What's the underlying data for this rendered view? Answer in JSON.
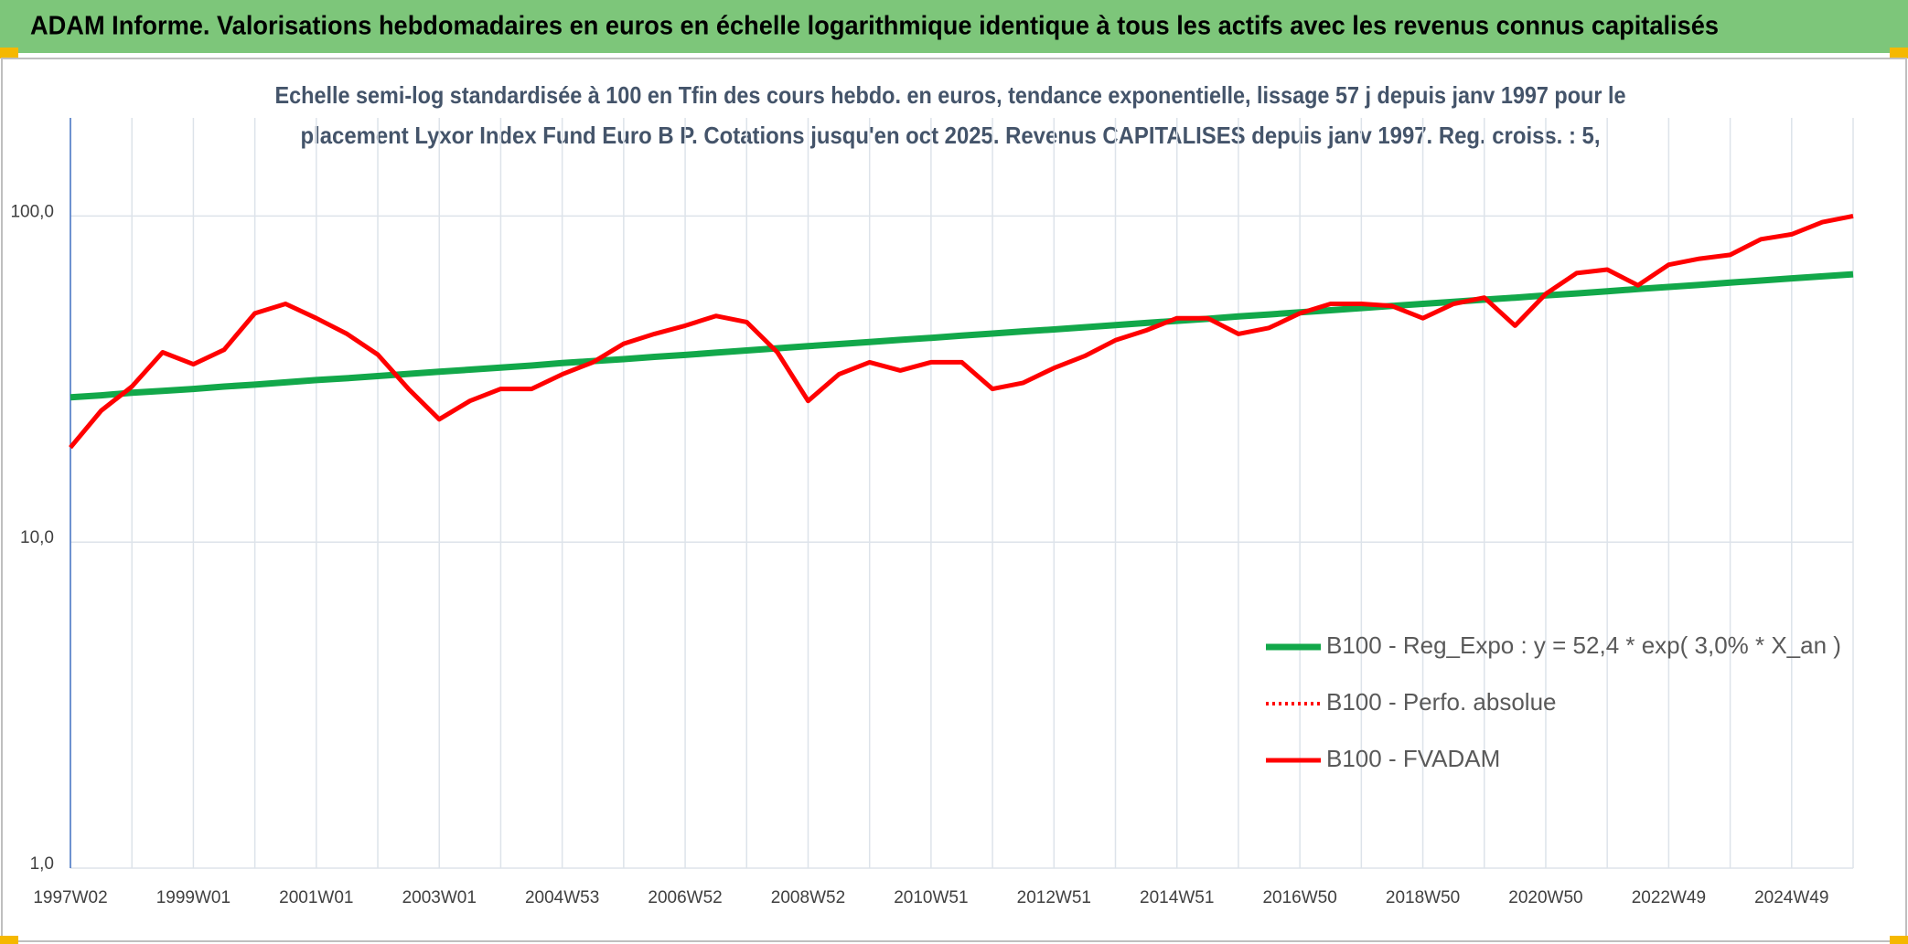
{
  "chart_data": {
    "type": "line",
    "title": "ADAM Informe. Valorisations hebdomadaires en euros en échelle logarithmique identique à tous les actifs avec les revenus connus capitalisés",
    "subtitle": [
      "Echelle semi-log standardisée à 100 en Tfin des cours hebdo. en euros, tendance exponentielle, lissage 57 j depuis janv 1997 pour le",
      "placement Lyxor Index Fund Euro B P. Cotations jusqu'en oct 2025. Revenus CAPITALISES depuis janv 1997. Reg. croiss. : 5,"
    ],
    "categories": [
      "1997W02",
      null,
      null,
      null,
      "1999W01",
      null,
      null,
      null,
      "2001W01",
      null,
      null,
      null,
      "2003W01",
      null,
      null,
      null,
      "2004W53",
      null,
      null,
      null,
      "2006W52",
      null,
      null,
      null,
      "2008W52",
      null,
      null,
      null,
      "2010W51",
      null,
      null,
      null,
      "2012W51",
      null,
      null,
      null,
      "2014W51",
      null,
      null,
      null,
      "2016W50",
      null,
      null,
      null,
      "2018W50",
      null,
      null,
      null,
      "2020W50",
      null,
      null,
      null,
      "2022W49",
      null,
      null,
      null,
      "2024W49",
      null,
      null
    ],
    "series": [
      {
        "name": "B100 - Reg_Expo : y = 52,4 * exp( 3,0% *  X_an )",
        "color": "#12a84a",
        "style": "solid",
        "values": [
          27.8,
          28.2,
          28.7,
          29.1,
          29.5,
          30.0,
          30.4,
          30.9,
          31.4,
          31.8,
          32.3,
          32.8,
          33.3,
          33.8,
          34.3,
          34.8,
          35.4,
          35.9,
          36.4,
          37.0,
          37.5,
          38.1,
          38.7,
          39.3,
          39.9,
          40.5,
          41.1,
          41.7,
          42.3,
          43.0,
          43.6,
          44.3,
          44.9,
          45.6,
          46.3,
          47.0,
          47.7,
          48.4,
          49.2,
          49.9,
          50.7,
          51.4,
          52.2,
          53.0,
          53.8,
          54.6,
          55.4,
          56.2,
          57.1,
          57.9,
          58.8,
          59.7,
          60.6,
          61.5,
          62.5,
          63.4,
          64.4,
          65.3,
          66.3
        ]
      },
      {
        "name": "B100 - Perfo. absolue",
        "color": "#ff0000",
        "style": "dotted",
        "values": [
          19.5,
          25.3,
          30.0,
          38.2,
          35.1,
          38.9,
          50.3,
          53.8,
          48.6,
          43.5,
          37.6,
          29.5,
          23.8,
          27.1,
          29.5,
          29.5,
          32.7,
          35.6,
          40.6,
          43.5,
          46.1,
          49.4,
          47.3,
          38.2,
          27.1,
          32.7,
          35.6,
          33.6,
          35.6,
          35.6,
          29.5,
          30.8,
          34.2,
          37.2,
          41.6,
          44.6,
          48.6,
          48.6,
          43.5,
          45.4,
          50.3,
          53.8,
          53.8,
          53.0,
          48.6,
          53.8,
          56.2,
          46.1,
          57.7,
          66.8,
          68.5,
          61.3,
          70.9,
          74.0,
          76.0,
          84.9,
          87.9,
          95.8,
          100
        ]
      },
      {
        "name": "B100 - FVADAM",
        "color": "#ff0000",
        "style": "solid",
        "values": [
          19.5,
          25.3,
          30.0,
          38.2,
          35.1,
          38.9,
          50.3,
          53.8,
          48.6,
          43.5,
          37.6,
          29.5,
          23.8,
          27.1,
          29.5,
          29.5,
          32.7,
          35.6,
          40.6,
          43.5,
          46.1,
          49.4,
          47.3,
          38.2,
          27.1,
          32.7,
          35.6,
          33.6,
          35.6,
          35.6,
          29.5,
          30.8,
          34.2,
          37.2,
          41.6,
          44.6,
          48.6,
          48.6,
          43.5,
          45.4,
          50.3,
          53.8,
          53.8,
          53.0,
          48.6,
          53.8,
          56.2,
          46.1,
          57.7,
          66.8,
          68.5,
          61.3,
          70.9,
          74.0,
          76.0,
          84.9,
          87.9,
          95.8,
          100
        ]
      }
    ],
    "ylim": [
      1,
      200
    ],
    "yticks": [
      {
        "value": 1,
        "label": "1,0"
      },
      {
        "value": 10,
        "label": "10,0"
      },
      {
        "value": 100,
        "label": "100,0"
      }
    ],
    "log_scale": true,
    "grid": true,
    "legend": "right"
  }
}
